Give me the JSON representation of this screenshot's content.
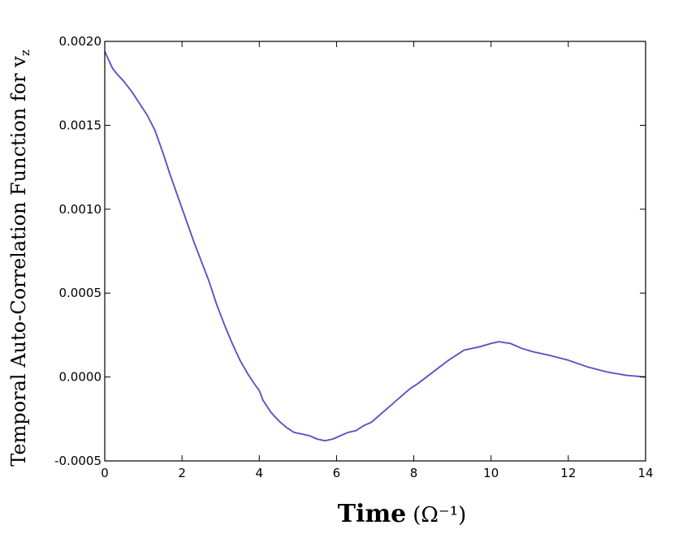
{
  "chart_data": {
    "type": "line",
    "title": "",
    "xlabel": "Time",
    "xlabel_unit": "(Ω⁻¹)",
    "ylabel": "Temporal Auto-Correlation Function for v",
    "ylabel_subscript": "z",
    "xlim": [
      0,
      14
    ],
    "ylim": [
      -0.0005,
      0.002
    ],
    "xticks": [
      0,
      2,
      4,
      6,
      8,
      10,
      12,
      14
    ],
    "xtick_labels": [
      "0",
      "2",
      "4",
      "6",
      "8",
      "10",
      "12",
      "14"
    ],
    "yticks": [
      -0.0005,
      0.0,
      0.0005,
      0.001,
      0.0015,
      0.002
    ],
    "ytick_labels": [
      "-0.0005",
      "0.0000",
      "0.0005",
      "0.0010",
      "0.0015",
      "0.0020"
    ],
    "grid": false,
    "series": [
      {
        "color": "#4a4af0",
        "x": [
          0.0,
          0.1,
          0.2,
          0.3,
          0.5,
          0.7,
          0.9,
          1.1,
          1.3,
          1.5,
          1.7,
          1.9,
          2.1,
          2.3,
          2.5,
          2.7,
          2.9,
          3.1,
          3.3,
          3.5,
          3.7,
          3.9,
          4.0,
          4.1,
          4.3,
          4.5,
          4.7,
          4.9,
          5.1,
          5.3,
          5.5,
          5.7,
          5.9,
          6.1,
          6.3,
          6.5,
          6.7,
          6.9,
          7.1,
          7.3,
          7.5,
          7.7,
          7.9,
          8.1,
          8.5,
          8.9,
          9.3,
          9.7,
          10.0,
          10.2,
          10.5,
          10.8,
          11.1,
          11.5,
          12.0,
          12.5,
          13.0,
          13.5,
          14.0
        ],
        "y": [
          0.00194,
          0.00189,
          0.00184,
          0.00181,
          0.00176,
          0.0017,
          0.00163,
          0.00156,
          0.00147,
          0.00134,
          0.0012,
          0.00107,
          0.00094,
          0.00081,
          0.00069,
          0.00057,
          0.00043,
          0.00031,
          0.0002,
          0.0001,
          2e-05,
          -5e-05,
          -8e-05,
          -0.00014,
          -0.00021,
          -0.00026,
          -0.0003,
          -0.00033,
          -0.00034,
          -0.00035,
          -0.00037,
          -0.00038,
          -0.00037,
          -0.00035,
          -0.00033,
          -0.00032,
          -0.00029,
          -0.00027,
          -0.00023,
          -0.00019,
          -0.00015,
          -0.00011,
          -7e-05,
          -4e-05,
          3e-05,
          0.0001,
          0.00016,
          0.00018,
          0.0002,
          0.00021,
          0.0002,
          0.00017,
          0.00015,
          0.00013,
          0.0001,
          6e-05,
          3e-05,
          1e-05,
          0.0
        ]
      }
    ]
  }
}
